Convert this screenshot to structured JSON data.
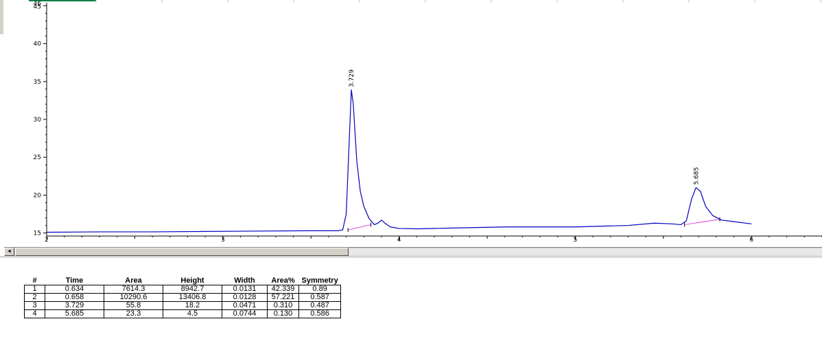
{
  "chart_data": {
    "type": "line",
    "title": "",
    "xlabel": "",
    "ylabel": "",
    "xlim": [
      2,
      6.4
    ],
    "ylim": [
      14.6,
      45.4
    ],
    "x_ticks": [
      2,
      3,
      4,
      5,
      6
    ],
    "y_ticks": [
      15,
      20,
      25,
      30,
      35,
      40,
      45
    ],
    "y_top_tick_labels": [
      "46",
      "45"
    ],
    "series": [
      {
        "color": "#0000c0",
        "points": [
          [
            2.0,
            15.1
          ],
          [
            2.3,
            15.15
          ],
          [
            2.6,
            15.15
          ],
          [
            2.9,
            15.2
          ],
          [
            3.2,
            15.25
          ],
          [
            3.5,
            15.3
          ],
          [
            3.65,
            15.3
          ],
          [
            3.68,
            15.4
          ],
          [
            3.7,
            17.5
          ],
          [
            3.715,
            26.0
          ],
          [
            3.729,
            33.9
          ],
          [
            3.74,
            32.0
          ],
          [
            3.76,
            24.5
          ],
          [
            3.78,
            20.5
          ],
          [
            3.8,
            18.5
          ],
          [
            3.83,
            16.9
          ],
          [
            3.86,
            16.1
          ],
          [
            3.88,
            16.3
          ],
          [
            3.9,
            16.7
          ],
          [
            3.92,
            16.3
          ],
          [
            3.95,
            15.8
          ],
          [
            4.0,
            15.6
          ],
          [
            4.1,
            15.55
          ],
          [
            4.3,
            15.65
          ],
          [
            4.6,
            15.8
          ],
          [
            5.0,
            15.8
          ],
          [
            5.3,
            16.0
          ],
          [
            5.45,
            16.3
          ],
          [
            5.55,
            16.2
          ],
          [
            5.6,
            16.1
          ],
          [
            5.63,
            16.6
          ],
          [
            5.66,
            19.5
          ],
          [
            5.685,
            21.0
          ],
          [
            5.71,
            20.5
          ],
          [
            5.74,
            18.5
          ],
          [
            5.78,
            17.3
          ],
          [
            5.83,
            16.7
          ],
          [
            5.9,
            16.5
          ],
          [
            6.0,
            16.2
          ]
        ]
      }
    ],
    "baselines": [
      {
        "color": "#e040e0",
        "points": [
          [
            3.71,
            15.4
          ],
          [
            3.84,
            16.1
          ]
        ]
      },
      {
        "color": "#e040e0",
        "points": [
          [
            5.62,
            16.1
          ],
          [
            5.82,
            16.8
          ]
        ]
      }
    ],
    "peak_labels": [
      {
        "x": 3.729,
        "y": 33.9,
        "text": "3.729"
      },
      {
        "x": 5.685,
        "y": 21.0,
        "text": "5.685"
      }
    ]
  },
  "scrollbar": {
    "left_arrow": "◄"
  },
  "table": {
    "headers": [
      "#",
      "Time",
      "Area",
      "Height",
      "Width",
      "Area%",
      "Symmetry"
    ],
    "rows": [
      [
        "1",
        "0.634",
        "7614.3",
        "8942.7",
        "0.0131",
        "42.339",
        "0.89"
      ],
      [
        "2",
        "0.658",
        "10290.6",
        "13406.8",
        "0.0128",
        "57.221",
        "0.587"
      ],
      [
        "3",
        "3.729",
        "55.8",
        "18.2",
        "0.0471",
        "0.310",
        "0.487"
      ],
      [
        "4",
        "5.685",
        "23.3",
        "4.5",
        "0.0744",
        "0.130",
        "0.586"
      ]
    ]
  }
}
